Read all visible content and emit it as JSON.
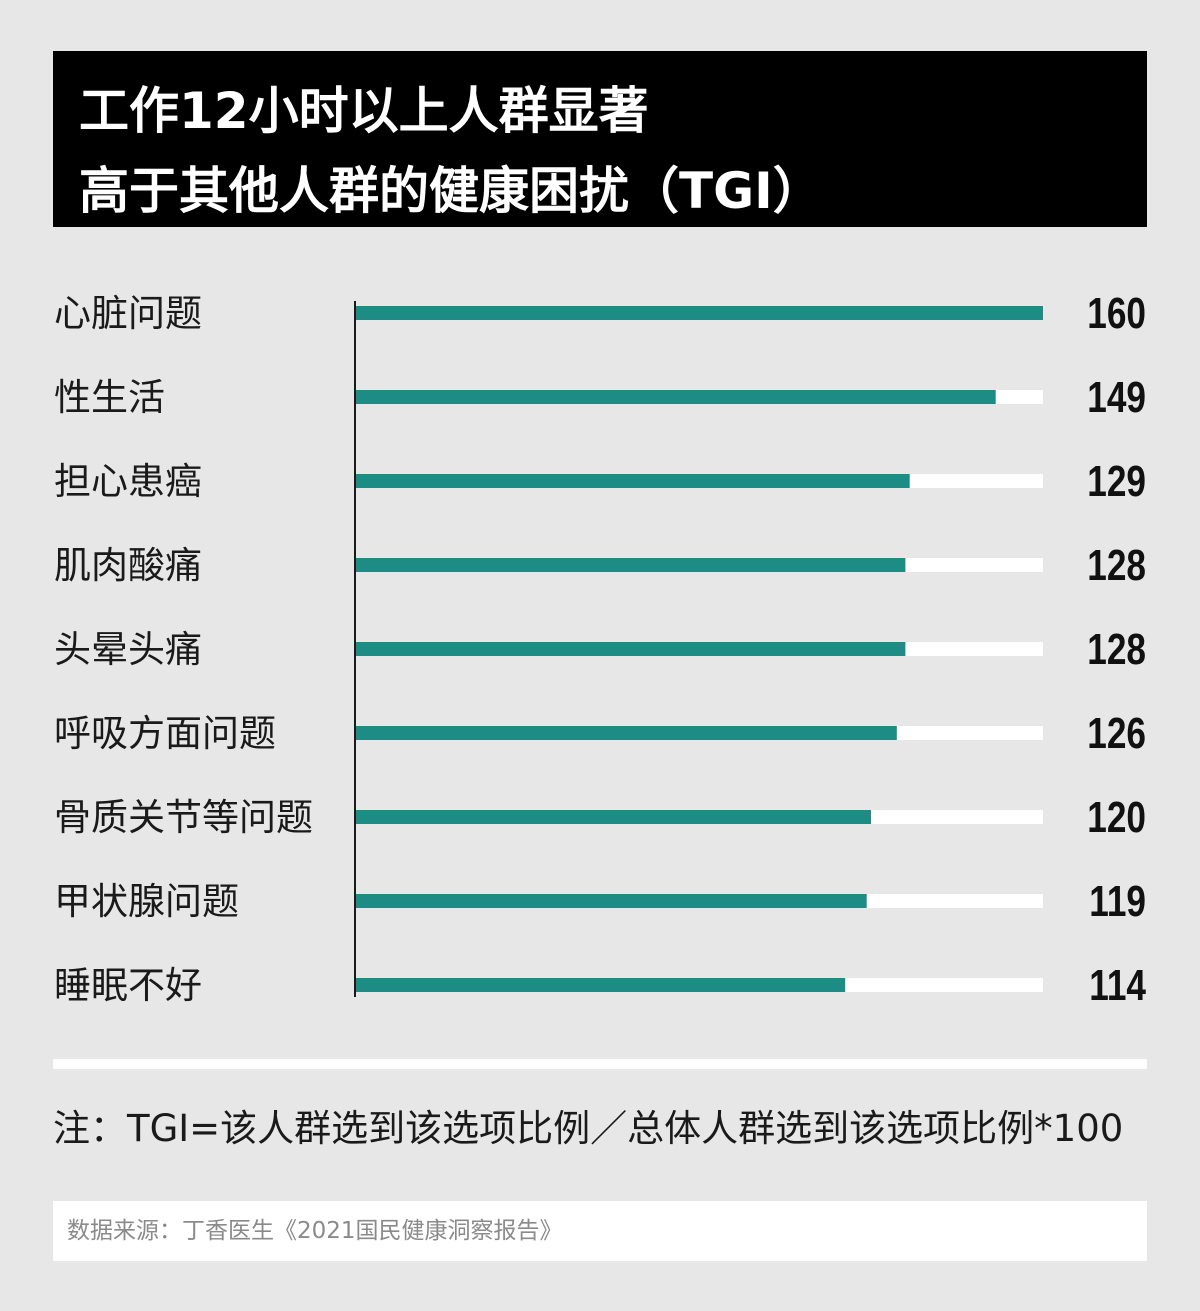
{
  "title_lines": [
    "工作12小时以上人群显著",
    "高于其他人群的健康困扰（TGI）"
  ],
  "note": "注：TGI=该人群选到该选项比例／总体人群选到该选项比例*100",
  "source": "数据来源：丁香医生《2021国民健康洞察报告》",
  "colors": {
    "background": "#e7e7e7",
    "bar": "#1c8c85",
    "track": "#ffffff",
    "axis": "#1a1a1a",
    "title_bg": "#000000"
  },
  "chart_data": {
    "type": "bar",
    "orientation": "horizontal",
    "categories": [
      "心脏问题",
      "性生活",
      "担心患癌",
      "肌肉酸痛",
      "头晕头痛",
      "呼吸方面问题",
      "骨质关节等问题",
      "甲状腺问题",
      "睡眠不好"
    ],
    "values": [
      160,
      149,
      129,
      128,
      128,
      126,
      120,
      119,
      114
    ],
    "xlim": [
      0,
      160
    ],
    "title": "",
    "xlabel": "",
    "ylabel": "",
    "data_labels": true,
    "grid": false,
    "legend": "none"
  }
}
